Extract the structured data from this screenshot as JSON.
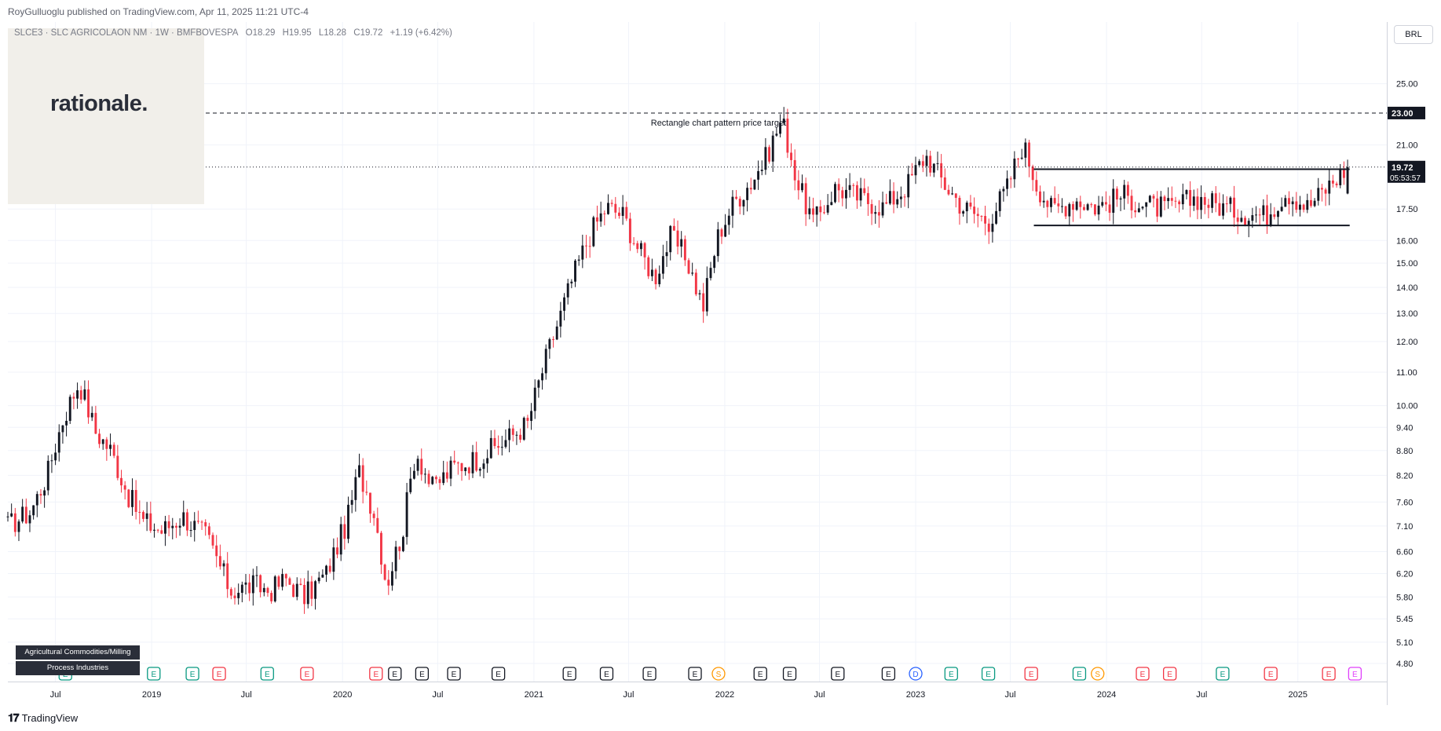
{
  "header": {
    "publisher": "RoyGulluoglu published on TradingView.com, Apr 11, 2025 11:21 UTC-4"
  },
  "legend": {
    "symbol": "SLCE3 · SLC AGRICOLAON NM · 1W · BMFBOVESPA",
    "open": "O18.29",
    "high": "H19.95",
    "low": "L18.28",
    "close": "C19.72",
    "change": "+1.19 (+6.42%)"
  },
  "watermark": {
    "brand": "rationale."
  },
  "currency": "BRL",
  "industry_tags": [
    "Agricultural Commodities/Milling",
    "Process Industries"
  ],
  "footer": {
    "brand": "TradingView"
  },
  "colors": {
    "up": "#131722",
    "down": "#f23645",
    "grid": "#f0f3fa",
    "earnings": "#089981",
    "earnings_neg": "#f23645",
    "dividend": "#2962ff",
    "split": "#ff9800"
  },
  "chart_data": {
    "type": "candlestick",
    "scale": "log",
    "ylim": [
      4.6,
      27.5
    ],
    "y_ticks": [
      "25.00",
      "21.00",
      "17.50",
      "16.00",
      "15.00",
      "14.00",
      "13.00",
      "12.00",
      "11.00",
      "10.00",
      "9.40",
      "8.80",
      "8.20",
      "7.60",
      "7.10",
      "6.60",
      "6.20",
      "5.80",
      "5.45",
      "5.10",
      "4.80"
    ],
    "x_ticks": [
      "Jul",
      "2019",
      "Jul",
      "2020",
      "Jul",
      "2021",
      "Jul",
      "2022",
      "Jul",
      "2023",
      "Jul",
      "2024",
      "Jul",
      "2025"
    ],
    "x_tick_dates": [
      "2018-07-01",
      "2019-01-01",
      "2019-07-01",
      "2020-01-01",
      "2020-07-01",
      "2021-01-01",
      "2021-07-01",
      "2022-01-01",
      "2022-07-01",
      "2023-01-01",
      "2023-07-01",
      "2024-01-01",
      "2024-07-01",
      "2025-01-01"
    ],
    "x_range": [
      "2018-04-01",
      "2025-06-20"
    ],
    "price_path": [
      [
        "2018-04-01",
        7.1
      ],
      [
        "2018-05-15",
        7.4
      ],
      [
        "2018-06-15",
        8.2
      ],
      [
        "2018-07-15",
        9.6
      ],
      [
        "2018-08-15",
        10.7
      ],
      [
        "2018-09-15",
        9.3
      ],
      [
        "2018-10-15",
        8.8
      ],
      [
        "2018-11-15",
        7.8
      ],
      [
        "2018-12-15",
        7.2
      ],
      [
        "2019-01-20",
        7.0
      ],
      [
        "2019-03-01",
        7.3
      ],
      [
        "2019-04-15",
        6.9
      ],
      [
        "2019-06-01",
        5.9
      ],
      [
        "2019-07-15",
        6.0
      ],
      [
        "2019-08-15",
        5.9
      ],
      [
        "2019-09-15",
        6.1
      ],
      [
        "2019-10-20",
        5.8
      ],
      [
        "2019-12-01",
        6.2
      ],
      [
        "2020-01-10",
        7.2
      ],
      [
        "2020-02-01",
        8.3
      ],
      [
        "2020-03-01",
        7.4
      ],
      [
        "2020-03-25",
        6.0
      ],
      [
        "2020-04-25",
        7.0
      ],
      [
        "2020-05-20",
        8.8
      ],
      [
        "2020-06-20",
        7.9
      ],
      [
        "2020-08-01",
        8.4
      ],
      [
        "2020-09-15",
        8.6
      ],
      [
        "2020-11-01",
        9.0
      ],
      [
        "2020-12-20",
        9.5
      ],
      [
        "2021-01-20",
        11.2
      ],
      [
        "2021-02-20",
        12.9
      ],
      [
        "2021-03-20",
        14.6
      ],
      [
        "2021-04-20",
        16.4
      ],
      [
        "2021-05-20",
        17.6
      ],
      [
        "2021-06-20",
        17.2
      ],
      [
        "2021-07-20",
        15.6
      ],
      [
        "2021-08-20",
        14.4
      ],
      [
        "2021-09-20",
        16.2
      ],
      [
        "2021-10-20",
        15.2
      ],
      [
        "2021-11-20",
        13.2
      ],
      [
        "2021-12-20",
        16.3
      ],
      [
        "2022-01-20",
        17.9
      ],
      [
        "2022-02-20",
        18.9
      ],
      [
        "2022-03-20",
        20.2
      ],
      [
        "2022-04-20",
        22.6
      ],
      [
        "2022-05-20",
        18.8
      ],
      [
        "2022-06-20",
        16.8
      ],
      [
        "2022-08-01",
        18.6
      ],
      [
        "2022-09-15",
        18.1
      ],
      [
        "2022-11-01",
        17.6
      ],
      [
        "2022-12-15",
        18.7
      ],
      [
        "2023-01-20",
        20.4
      ],
      [
        "2023-02-25",
        18.8
      ],
      [
        "2023-04-01",
        17.6
      ],
      [
        "2023-05-20",
        16.9
      ],
      [
        "2023-06-25",
        18.6
      ],
      [
        "2023-07-25",
        21.1
      ],
      [
        "2023-08-20",
        18.8
      ],
      [
        "2023-09-20",
        17.4
      ],
      [
        "2023-11-01",
        18.0
      ],
      [
        "2023-12-15",
        17.6
      ],
      [
        "2024-02-01",
        18.2
      ],
      [
        "2024-03-15",
        17.7
      ],
      [
        "2024-05-01",
        17.5
      ],
      [
        "2024-06-20",
        18.1
      ],
      [
        "2024-08-01",
        17.7
      ],
      [
        "2024-09-20",
        17.3
      ],
      [
        "2024-11-01",
        17.2
      ],
      [
        "2024-12-10",
        18.4
      ],
      [
        "2025-01-20",
        17.6
      ],
      [
        "2025-03-01",
        18.7
      ],
      [
        "2025-04-06",
        19.72
      ]
    ],
    "levels": [
      {
        "price": 23.0,
        "label": "23.00",
        "style": "dashed",
        "color": "#131722"
      },
      {
        "price": 19.72,
        "label": "19.72",
        "sublabel": "05:53:57",
        "style": "dotted",
        "color": "#131722"
      }
    ],
    "rectangle": {
      "top": 19.6,
      "bottom": 16.7,
      "start": "2023-08-15",
      "end": "2025-04-10",
      "color": "#131722"
    },
    "annotation": {
      "text": "Rectangle chart pattern price target",
      "date": "2021-12-20",
      "price": 22.2
    },
    "events": [
      {
        "type": "E",
        "date": "2018-07-20",
        "pos": true
      },
      {
        "type": "E",
        "date": "2019-01-05",
        "pos": true
      },
      {
        "type": "E",
        "date": "2019-03-20",
        "pos": true
      },
      {
        "type": "E",
        "date": "2019-05-10",
        "neg": true
      },
      {
        "type": "E",
        "date": "2019-08-10",
        "pos": true
      },
      {
        "type": "E",
        "date": "2019-10-25",
        "neg": true
      },
      {
        "type": "E",
        "date": "2020-03-05",
        "neg": true
      },
      {
        "type": "E",
        "date": "2020-04-10",
        "gray": true
      },
      {
        "type": "E",
        "date": "2020-06-01",
        "gray": true
      },
      {
        "type": "E",
        "date": "2020-08-01",
        "gray": true
      },
      {
        "type": "E",
        "date": "2020-10-25",
        "gray": true
      },
      {
        "type": "E",
        "date": "2021-03-10",
        "gray": true
      },
      {
        "type": "E",
        "date": "2021-05-20",
        "gray": true
      },
      {
        "type": "E",
        "date": "2021-08-10",
        "gray": true
      },
      {
        "type": "E",
        "date": "2021-11-05",
        "gray": true
      },
      {
        "type": "S",
        "date": "2021-12-20",
        "split": true
      },
      {
        "type": "E",
        "date": "2022-03-10",
        "gray": true
      },
      {
        "type": "E",
        "date": "2022-05-05",
        "gray": true
      },
      {
        "type": "E",
        "date": "2022-08-05",
        "gray": true
      },
      {
        "type": "E",
        "date": "2022-11-10",
        "gray": true
      },
      {
        "type": "D",
        "date": "2023-01-01",
        "div": true
      },
      {
        "type": "E",
        "date": "2023-03-10",
        "pos": true
      },
      {
        "type": "E",
        "date": "2023-05-20",
        "pos": true
      },
      {
        "type": "E",
        "date": "2023-08-10",
        "neg": true
      },
      {
        "type": "E",
        "date": "2023-11-10",
        "pos": true
      },
      {
        "type": "S",
        "date": "2023-12-15",
        "split": true
      },
      {
        "type": "E",
        "date": "2024-03-10",
        "neg": true
      },
      {
        "type": "E",
        "date": "2024-05-01",
        "neg": true
      },
      {
        "type": "E",
        "date": "2024-08-10",
        "pos": true
      },
      {
        "type": "E",
        "date": "2024-11-10",
        "neg": true
      },
      {
        "type": "E",
        "date": "2025-03-01",
        "neg": true
      },
      {
        "type": "E",
        "date": "2025-04-20",
        "pink": true
      }
    ]
  }
}
